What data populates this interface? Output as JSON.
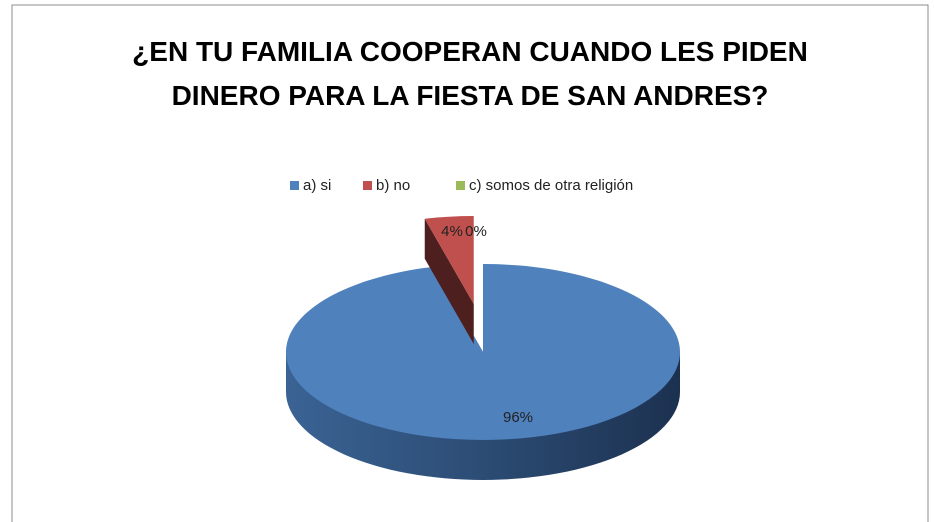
{
  "chart_data": {
    "type": "pie",
    "title": "¿EN TU FAMILIA COOPERAN CUANDO LES PIDEN DINERO PARA LA FIESTA DE SAN ANDRES?",
    "categories": [
      "a) si",
      "b) no",
      "c) somos de otra religión"
    ],
    "values": [
      96,
      4,
      0
    ],
    "value_labels": [
      "96%",
      "4%",
      "0%"
    ],
    "colors": [
      "#4f81bd",
      "#c0504d",
      "#9bbb59"
    ],
    "legend": "top"
  }
}
